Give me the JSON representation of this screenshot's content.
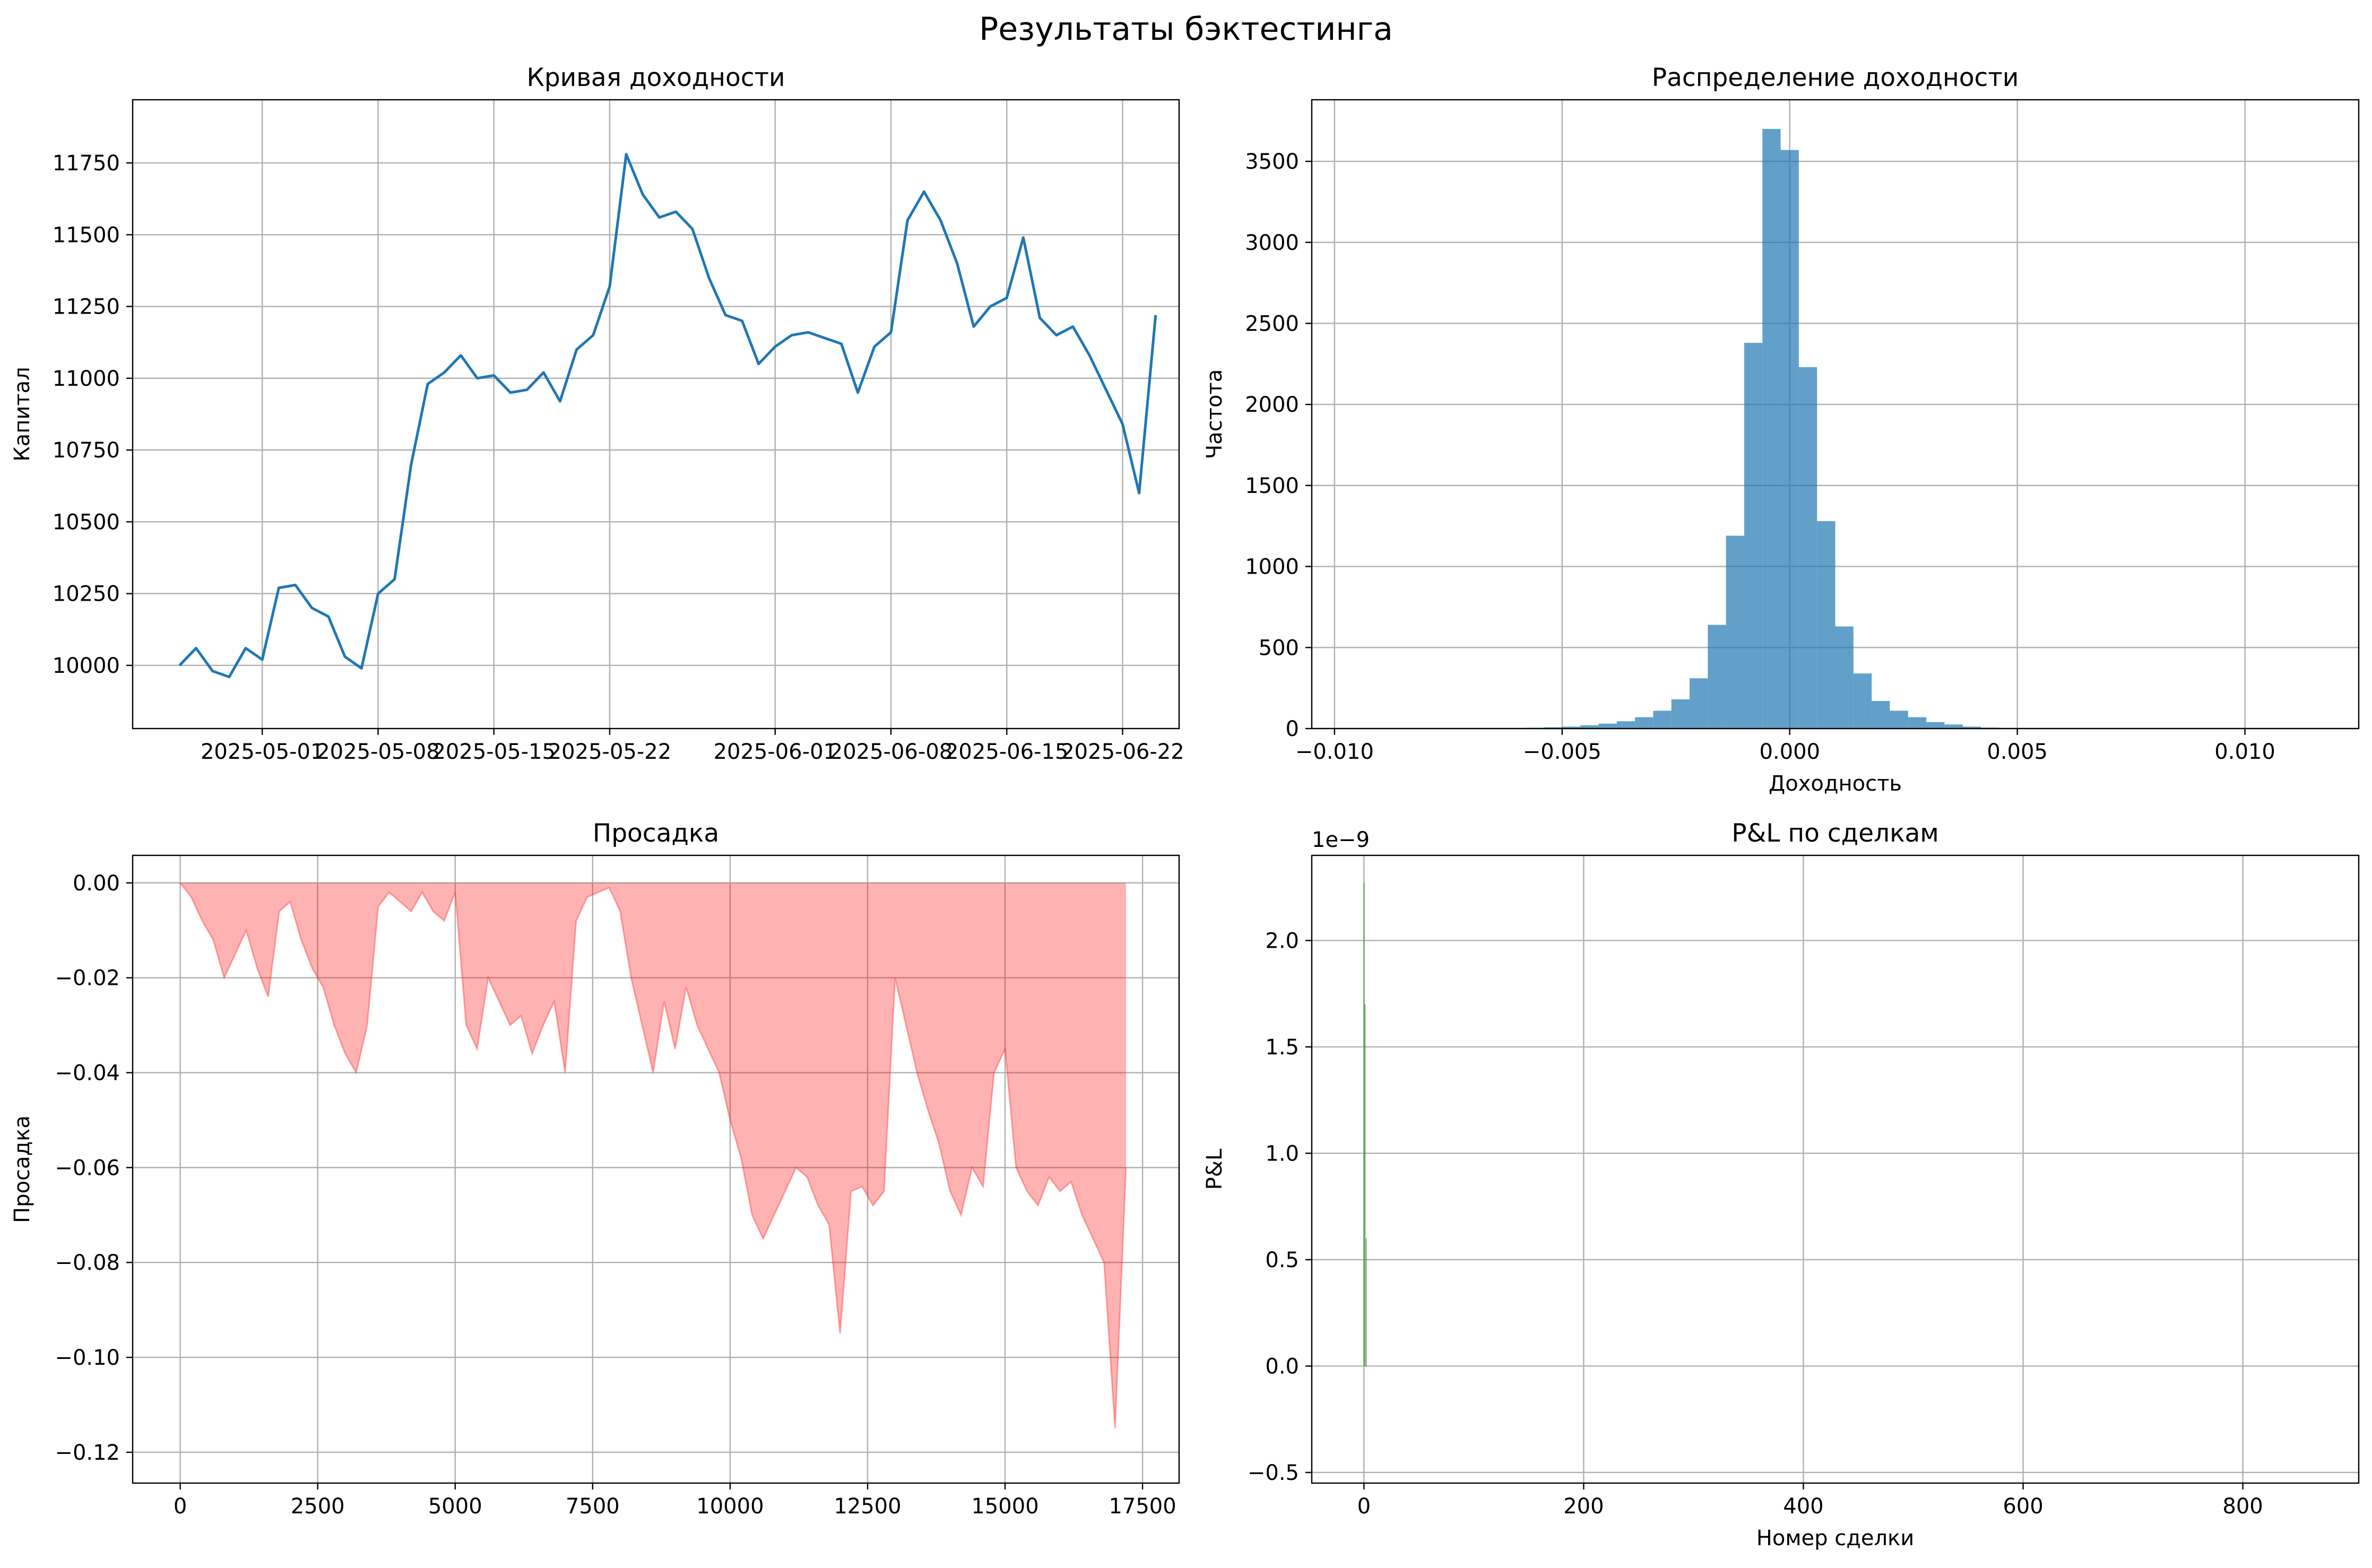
{
  "figure": {
    "title": "Результаты бэктестинга"
  },
  "chart_data": [
    {
      "id": "equity",
      "type": "line",
      "title": "Кривая доходности",
      "xlabel": "",
      "ylabel": "Капитал",
      "grid": true,
      "xlim": [
        "2025-04-23T04:00",
        "2025-06-25T10:00"
      ],
      "ylim": [
        9780,
        11970
      ],
      "x_ticks": [
        "2025-05-01",
        "2025-05-08",
        "2025-05-15",
        "2025-05-22",
        "2025-06-01",
        "2025-06-08",
        "2025-06-15",
        "2025-06-22"
      ],
      "y_ticks": [
        10000,
        10250,
        10500,
        10750,
        11000,
        11250,
        11500,
        11750
      ],
      "y_tick_labels": [
        "10000",
        "10250",
        "10500",
        "10750",
        "11000",
        "11250",
        "11500",
        "11750"
      ],
      "color": "#1f77b4",
      "series": [
        {
          "x": [
            "2025-04-26",
            "2025-04-27",
            "2025-04-28",
            "2025-04-29",
            "2025-04-30",
            "2025-05-01",
            "2025-05-02",
            "2025-05-03",
            "2025-05-04",
            "2025-05-05",
            "2025-05-06",
            "2025-05-07",
            "2025-05-08",
            "2025-05-09",
            "2025-05-10",
            "2025-05-11",
            "2025-05-12",
            "2025-05-13",
            "2025-05-14",
            "2025-05-15",
            "2025-05-16",
            "2025-05-17",
            "2025-05-18",
            "2025-05-19",
            "2025-05-20",
            "2025-05-21",
            "2025-05-22",
            "2025-05-23",
            "2025-05-24",
            "2025-05-25",
            "2025-05-26",
            "2025-05-27",
            "2025-05-28",
            "2025-05-29",
            "2025-05-30",
            "2025-05-31",
            "2025-06-01",
            "2025-06-02",
            "2025-06-03",
            "2025-06-04",
            "2025-06-05",
            "2025-06-06",
            "2025-06-07",
            "2025-06-08",
            "2025-06-09",
            "2025-06-10",
            "2025-06-11",
            "2025-06-12",
            "2025-06-13",
            "2025-06-14",
            "2025-06-15",
            "2025-06-16",
            "2025-06-17",
            "2025-06-18",
            "2025-06-19",
            "2025-06-20",
            "2025-06-21",
            "2025-06-22",
            "2025-06-23",
            "2025-06-24"
          ],
          "values": [
            10000,
            10060,
            9980,
            9960,
            10060,
            10020,
            10270,
            10280,
            10200,
            10170,
            10030,
            9990,
            10250,
            10300,
            10700,
            10980,
            11020,
            11080,
            11000,
            11010,
            10950,
            10960,
            11020,
            10920,
            11100,
            11150,
            11320,
            11780,
            11640,
            11560,
            11580,
            11520,
            11350,
            11220,
            11200,
            11050,
            11110,
            11150,
            11160,
            11140,
            11120,
            10950,
            11110,
            11160,
            11550,
            11650,
            11550,
            11400,
            11180,
            11250,
            11280,
            11490,
            11210,
            11150,
            11180,
            11080,
            10960,
            10840,
            10600,
            11220
          ]
        }
      ]
    },
    {
      "id": "returns_hist",
      "type": "bar",
      "title": "Распределение доходности",
      "xlabel": "Доходность",
      "ylabel": "Частота",
      "grid": true,
      "xlim": [
        -0.0105,
        0.0125
      ],
      "ylim": [
        0,
        3880
      ],
      "x_ticks": [
        -0.01,
        -0.005,
        0.0,
        0.005,
        0.01
      ],
      "x_tick_labels": [
        "−0.010",
        "−0.005",
        "0.000",
        "0.005",
        "0.010"
      ],
      "y_ticks": [
        0,
        500,
        1000,
        1500,
        2000,
        2500,
        3000,
        3500
      ],
      "y_tick_labels": [
        "0",
        "500",
        "1000",
        "1500",
        "2000",
        "2500",
        "3000",
        "3500"
      ],
      "color": "#1f77b4",
      "bin_width": 0.0004,
      "bin_starts": [
        -0.0062,
        -0.0058,
        -0.0054,
        -0.005,
        -0.0046,
        -0.0042,
        -0.0038,
        -0.0034,
        -0.003,
        -0.0026,
        -0.0022,
        -0.0018,
        -0.0014,
        -0.001,
        -0.0006,
        -0.0002,
        0.0002,
        0.0006,
        0.001,
        0.0014,
        0.0018,
        0.0022,
        0.0026,
        0.003,
        0.0034,
        0.0038,
        0.0042,
        0.0046
      ],
      "values": [
        3,
        5,
        8,
        12,
        20,
        30,
        45,
        70,
        110,
        180,
        310,
        640,
        1190,
        2380,
        3700,
        3570,
        2230,
        1280,
        630,
        340,
        170,
        110,
        70,
        40,
        25,
        12,
        6,
        3
      ]
    },
    {
      "id": "drawdown",
      "type": "area",
      "title": "Просадка",
      "xlabel": "",
      "ylabel": "Просадка",
      "grid": true,
      "xlim": [
        -865,
        18165
      ],
      "ylim": [
        -0.1265,
        0.0058
      ],
      "x_ticks": [
        0,
        2500,
        5000,
        7500,
        10000,
        12500,
        15000,
        17500
      ],
      "x_tick_labels": [
        "0",
        "2500",
        "5000",
        "7500",
        "10000",
        "12500",
        "15000",
        "17500"
      ],
      "y_ticks": [
        0.0,
        -0.02,
        -0.04,
        -0.06,
        -0.08,
        -0.1,
        -0.12
      ],
      "y_tick_labels": [
        "0.00",
        "−0.02",
        "−0.04",
        "−0.06",
        "−0.08",
        "−0.10",
        "−0.12"
      ],
      "color": "#ff0000",
      "series": [
        {
          "x": [
            0,
            200,
            400,
            600,
            800,
            1000,
            1200,
            1400,
            1600,
            1800,
            2000,
            2200,
            2400,
            2600,
            2800,
            3000,
            3200,
            3400,
            3600,
            3800,
            4000,
            4200,
            4400,
            4600,
            4800,
            5000,
            5200,
            5400,
            5600,
            5800,
            6000,
            6200,
            6400,
            6600,
            6800,
            7000,
            7200,
            7400,
            7600,
            7800,
            8000,
            8200,
            8400,
            8600,
            8800,
            9000,
            9200,
            9400,
            9600,
            9800,
            10000,
            10200,
            10400,
            10600,
            10800,
            11000,
            11200,
            11400,
            11600,
            11800,
            12000,
            12200,
            12400,
            12600,
            12800,
            13000,
            13200,
            13400,
            13600,
            13800,
            14000,
            14200,
            14400,
            14600,
            14800,
            15000,
            15200,
            15400,
            15600,
            15800,
            16000,
            16200,
            16400,
            16600,
            16800,
            17000,
            17200
          ],
          "values": [
            0,
            -0.003,
            -0.008,
            -0.012,
            -0.02,
            -0.015,
            -0.01,
            -0.018,
            -0.024,
            -0.006,
            -0.004,
            -0.012,
            -0.018,
            -0.022,
            -0.03,
            -0.036,
            -0.04,
            -0.03,
            -0.005,
            -0.002,
            -0.004,
            -0.006,
            -0.002,
            -0.006,
            -0.008,
            -0.002,
            -0.03,
            -0.035,
            -0.02,
            -0.025,
            -0.03,
            -0.028,
            -0.036,
            -0.03,
            -0.025,
            -0.04,
            -0.008,
            -0.003,
            -0.002,
            -0.001,
            -0.006,
            -0.02,
            -0.03,
            -0.04,
            -0.025,
            -0.035,
            -0.022,
            -0.03,
            -0.035,
            -0.04,
            -0.05,
            -0.058,
            -0.07,
            -0.075,
            -0.07,
            -0.065,
            -0.06,
            -0.062,
            -0.068,
            -0.072,
            -0.095,
            -0.065,
            -0.064,
            -0.068,
            -0.065,
            -0.02,
            -0.03,
            -0.04,
            -0.048,
            -0.055,
            -0.065,
            -0.07,
            -0.06,
            -0.064,
            -0.04,
            -0.035,
            -0.06,
            -0.065,
            -0.068,
            -0.062,
            -0.065,
            -0.063,
            -0.07,
            -0.075,
            -0.08,
            -0.115,
            -0.06
          ]
        }
      ]
    },
    {
      "id": "trade_pnl",
      "type": "bar",
      "title": "P&L по сделкам",
      "xlabel": "Номер сделки",
      "ylabel": "P&L",
      "grid": true,
      "offset_text": "1e−9",
      "xlim": [
        -47.5,
        905.5
      ],
      "ylim": [
        -0.55,
        2.4
      ],
      "x_ticks": [
        0,
        200,
        400,
        600,
        800
      ],
      "x_tick_labels": [
        "0",
        "200",
        "400",
        "600",
        "800"
      ],
      "y_ticks": [
        -0.5,
        0.0,
        0.5,
        1.0,
        1.5,
        2.0
      ],
      "y_tick_labels": [
        "−0.5",
        "0.0",
        "0.5",
        "1.0",
        "1.5",
        "2.0"
      ],
      "color": "#008000",
      "categories": [
        0,
        1,
        2
      ],
      "values": [
        2.27,
        1.7,
        0.6
      ]
    }
  ]
}
